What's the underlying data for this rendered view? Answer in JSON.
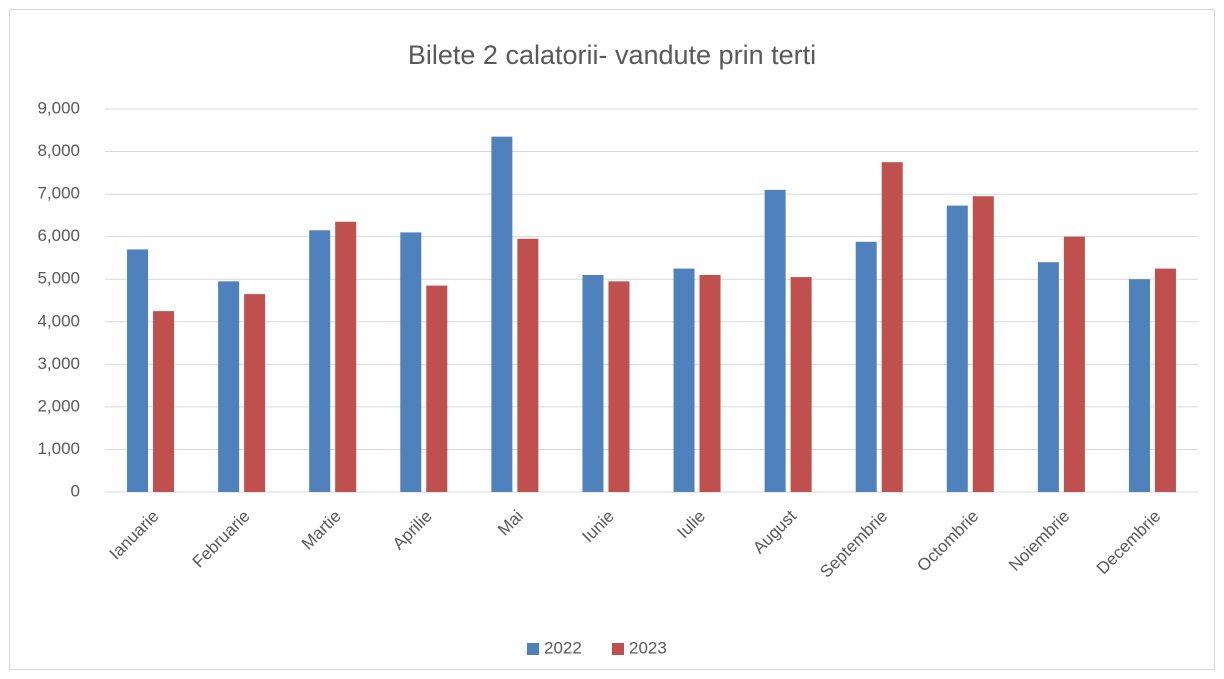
{
  "chart_data": {
    "type": "bar",
    "title": "Bilete 2 calatorii- vandute prin terti",
    "categories": [
      "Ianuarie",
      "Februarie",
      "Martie",
      "Aprilie",
      "Mai",
      "Iunie",
      "Iulie",
      "August",
      "Septembrie",
      "Octombrie",
      "Noiembrie",
      "Decembrie"
    ],
    "series": [
      {
        "name": "2022",
        "color": "#4f81bd",
        "values": [
          5700,
          4950,
          6150,
          6100,
          8350,
          5100,
          5250,
          7100,
          5880,
          6730,
          5400,
          5000
        ]
      },
      {
        "name": "2023",
        "color": "#c0504d",
        "values": [
          4250,
          4650,
          6350,
          4850,
          5950,
          4950,
          5100,
          5050,
          7750,
          6950,
          6000,
          5250
        ]
      }
    ],
    "ylim": [
      0,
      9000
    ],
    "yticks": [
      0,
      {
        "value": 1000,
        "label": "1,000"
      },
      {
        "value": 2000,
        "label": "2,000"
      },
      {
        "value": 3000,
        "label": "3,000"
      },
      {
        "value": 4000,
        "label": "4,000"
      },
      {
        "value": 5000,
        "label": "5,000"
      },
      {
        "value": 6000,
        "label": "6,000"
      },
      {
        "value": 7000,
        "label": "7,000"
      },
      {
        "value": 8000,
        "label": "8,000"
      },
      {
        "value": 9000,
        "label": "9,000"
      }
    ],
    "grid": true,
    "legend": "bottom"
  }
}
